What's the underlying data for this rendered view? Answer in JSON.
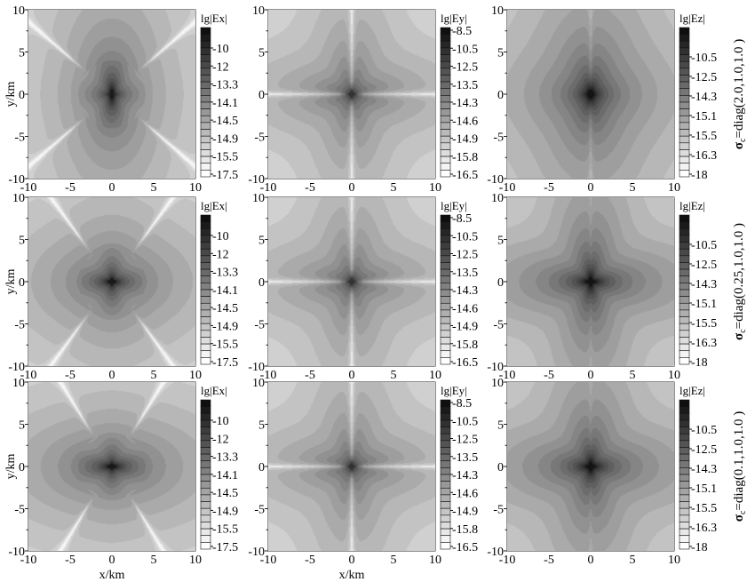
{
  "chart_data": {
    "type": "heatmap",
    "layout": "3x3 grid of contour maps",
    "xlabel": "x/km",
    "ylabel": "y/km",
    "xlim": [
      -10,
      10
    ],
    "ylim": [
      -10,
      10
    ],
    "x_ticks": [
      "-10",
      "-5",
      "0",
      "5",
      "10"
    ],
    "y_ticks": [
      "10",
      "5",
      "0",
      "-5",
      "-10"
    ],
    "colormap": "grayscale, dark = high, white = low",
    "columns": [
      {
        "component": "Ex",
        "colorbar_label": "lg|Ex|",
        "label_prefix": "lg|",
        "label_var": "E",
        "label_sub": "x",
        "label_suffix": "|",
        "colorbar_ticks": [
          "-10",
          "-12",
          "-13.3",
          "-14.1",
          "-14.5",
          "-14.9",
          "-15.5",
          "-17.5"
        ]
      },
      {
        "component": "Ey",
        "colorbar_label": "lg|Ey|",
        "label_prefix": "lg|",
        "label_var": "E",
        "label_sub": "y",
        "label_suffix": "|",
        "colorbar_ticks": [
          "-8.5",
          "-10.5",
          "-12.5",
          "-13.5",
          "-14.3",
          "-14.6",
          "-14.9",
          "-15.8",
          "-16.5"
        ]
      },
      {
        "component": "Ez",
        "colorbar_label": "lg|Ez|",
        "label_prefix": "lg|",
        "label_var": "E",
        "label_sub": "z",
        "label_suffix": "|",
        "colorbar_ticks": [
          "-10.5",
          "-12.5",
          "-14.3",
          "-15.1",
          "-15.5",
          "-16.3",
          "-18"
        ]
      }
    ],
    "rows": [
      {
        "sigma": "σ",
        "sub": "c",
        "text": "=diag(2.0,1.0,1.0 )"
      },
      {
        "sigma": "σ",
        "sub": "c",
        "text": "=diag(0.25,1.0,1.0 )"
      },
      {
        "sigma": "σ",
        "sub": "c",
        "text": "=diag(0.1,1.0,1.0 )"
      }
    ]
  }
}
